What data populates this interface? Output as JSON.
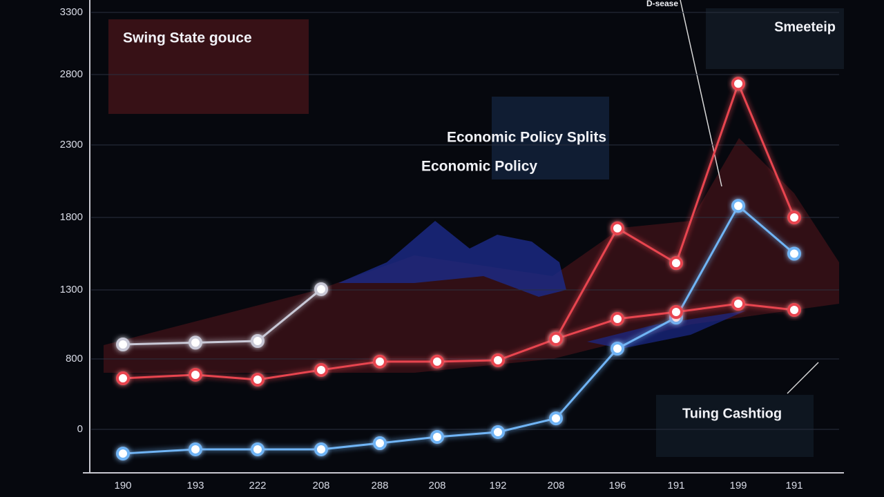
{
  "chart_data": {
    "type": "line",
    "annotations": [
      "Swing State gouce",
      "Economic Policy Splits",
      "Economic Policy",
      "Smeeteip",
      "Tuing Cashtiog",
      "D-sease"
    ],
    "categories": [
      "190",
      "193",
      "222",
      "208",
      "288",
      "208",
      "192",
      "208",
      "196",
      "191",
      "199",
      "191"
    ],
    "series": [
      {
        "color": "#6fb4f5",
        "values": [
          -275,
          -227,
          -227,
          -227,
          -157,
          -86,
          -31,
          125,
          875,
          1100,
          1880,
          1550
        ]
      },
      {
        "color": "#e8454f",
        "values": [
          580,
          620,
          565,
          675,
          770,
          770,
          785,
          945,
          1090,
          1140,
          1200,
          1155
        ]
      },
      {
        "color": "#e8454f",
        "values": [
          null,
          null,
          null,
          null,
          null,
          null,
          null,
          945,
          1725,
          1485,
          2735,
          1800
        ]
      },
      {
        "color": "#c8c8d6",
        "values": [
          905,
          918,
          930,
          1305,
          null,
          null,
          null,
          null,
          null,
          null,
          null,
          null
        ]
      }
    ],
    "ylim": [
      -400,
      3300
    ],
    "yticks": [
      0,
      800,
      1300,
      1800,
      2300,
      2800,
      3300
    ],
    "grid": true
  }
}
